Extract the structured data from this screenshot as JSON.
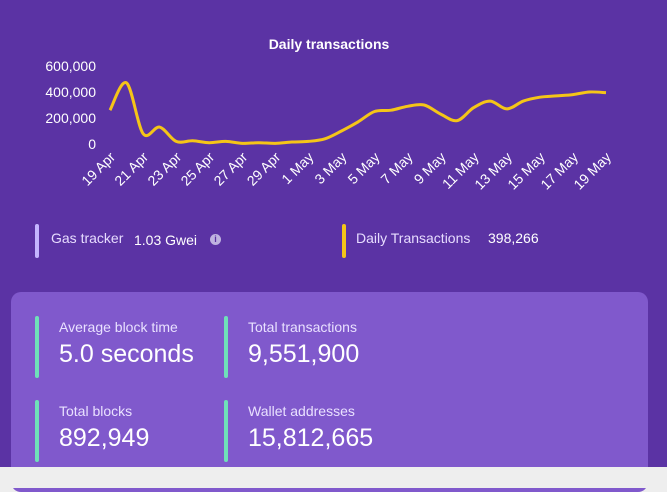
{
  "colors": {
    "background": "#5b33a4",
    "stats_card": "#8059cc",
    "line": "#f5c518",
    "gas_accent": "#c4b5ff",
    "stat_accent": "#6fe0b9"
  },
  "chart_data": {
    "type": "line",
    "title": "Daily transactions",
    "xlabel": "",
    "ylabel": "",
    "ylim": [
      0,
      600000
    ],
    "yticks": [
      "600,000",
      "400,000",
      "200,000",
      "0"
    ],
    "ytick_values": [
      600000,
      400000,
      200000,
      0
    ],
    "xtick_labels": [
      "19 Apr",
      "21 Apr",
      "23 Apr",
      "25 Apr",
      "27 Apr",
      "29 Apr",
      "1 May",
      "3 May",
      "5 May",
      "7 May",
      "9 May",
      "11 May",
      "13 May",
      "15 May",
      "17 May",
      "19 May"
    ],
    "grid": false,
    "legend": "none",
    "series": [
      {
        "x": [
          "19 Apr",
          "20 Apr",
          "21 Apr",
          "22 Apr",
          "23 Apr",
          "24 Apr",
          "25 Apr",
          "26 Apr",
          "27 Apr",
          "28 Apr",
          "29 Apr",
          "30 Apr",
          "1 May",
          "2 May",
          "3 May",
          "4 May",
          "5 May",
          "6 May",
          "7 May",
          "8 May",
          "9 May",
          "10 May",
          "11 May",
          "12 May",
          "13 May",
          "14 May",
          "15 May",
          "16 May",
          "17 May",
          "18 May",
          "19 May"
        ],
        "values": [
          260000,
          470000,
          80000,
          130000,
          20000,
          25000,
          10000,
          20000,
          5000,
          10000,
          5000,
          15000,
          20000,
          40000,
          100000,
          170000,
          250000,
          260000,
          290000,
          300000,
          230000,
          180000,
          280000,
          330000,
          270000,
          330000,
          360000,
          370000,
          380000,
          400000,
          395000
        ]
      }
    ]
  },
  "legend": {
    "gas": {
      "label": "Gas tracker",
      "value": "1.03 Gwei",
      "icon": "info-icon"
    },
    "daily": {
      "label": "Daily Transactions",
      "value": "398,266"
    }
  },
  "stats": [
    {
      "label": "Average block time",
      "value": "5.0 seconds"
    },
    {
      "label": "Total transactions",
      "value": "9,551,900"
    },
    {
      "label": "Total blocks",
      "value": "892,949"
    },
    {
      "label": "Wallet addresses",
      "value": "15,812,665"
    }
  ]
}
